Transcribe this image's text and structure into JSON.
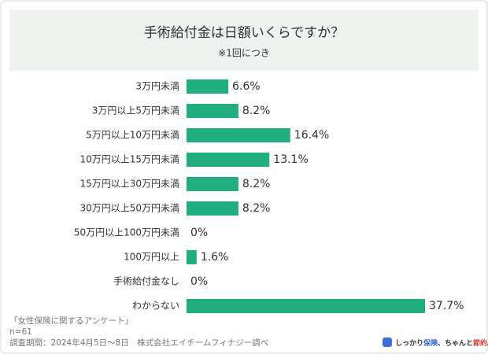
{
  "chart_data": {
    "type": "bar",
    "orientation": "horizontal",
    "title": "手術給付金は日額いくらですか？",
    "subtitle": "※1回につき",
    "categories": [
      "3万円未満",
      "3万円以上5万円未満",
      "5万円以上10万円未満",
      "10万円以上15万円未満",
      "15万円以上30万円未満",
      "30万円以上50万円未満",
      "50万円以上100万円未満",
      "100万円以上",
      "手術給付金なし",
      "わからない"
    ],
    "values": [
      6.6,
      8.2,
      16.4,
      13.1,
      8.2,
      8.2,
      0,
      1.6,
      0,
      37.7
    ],
    "value_labels": [
      "6.6%",
      "8.2%",
      "16.4%",
      "13.1%",
      "8.2%",
      "8.2%",
      "0%",
      "1.6%",
      "0%",
      "37.7%"
    ],
    "color": "#20ad7f"
  },
  "footer": {
    "survey": "「女性保険に関するアンケート」",
    "n": "n=61",
    "period": "調査期間：2024年4月5日～8日　株式会社エイチームフィナジー調べ"
  },
  "logo": [
    "しっかり",
    "保険",
    "、ちゃんと",
    "節約。"
  ]
}
